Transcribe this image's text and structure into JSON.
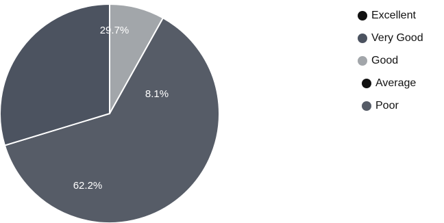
{
  "chart_data": {
    "type": "pie",
    "categories": [
      "Excellent",
      "Very Good",
      "Good",
      "Average",
      "Poor"
    ],
    "values": [
      0,
      29.7,
      8.1,
      0,
      62.2
    ],
    "labels": [
      "",
      "29.7%",
      "8.1%",
      "",
      "62.2%"
    ],
    "colors": [
      "#111111",
      "#4c5360",
      "#a2a6aa",
      "#111111",
      "#565c67"
    ],
    "legend": "right",
    "start_angle_deg": 90,
    "direction": "clockwise",
    "slice_order": [
      2,
      4,
      1
    ]
  }
}
